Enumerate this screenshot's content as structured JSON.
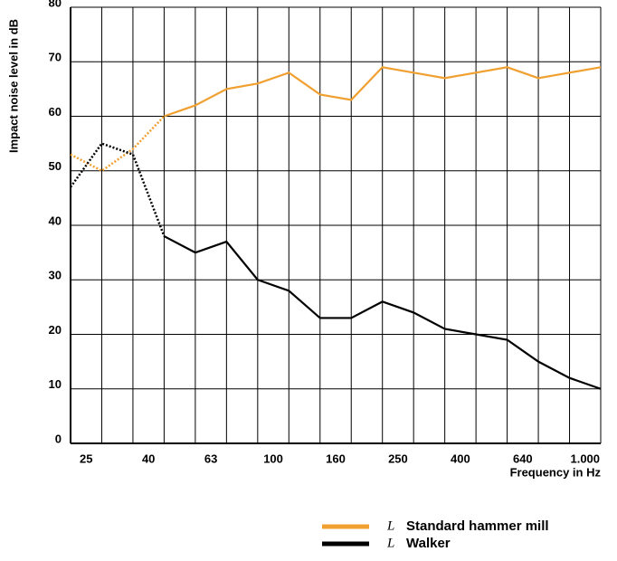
{
  "chart_data": {
    "type": "line",
    "y_label": "Impact noise level in dB",
    "x_label": "Frequency in Hz",
    "categories": [
      "25",
      null,
      "40",
      null,
      "63",
      null,
      "100",
      null,
      "160",
      null,
      "250",
      null,
      "400",
      null,
      "640",
      null,
      "1.000",
      null
    ],
    "ylim": [
      0,
      80
    ],
    "yticks": [
      0,
      10,
      20,
      30,
      40,
      50,
      60,
      70,
      80
    ],
    "grid": true,
    "legend_symbol": "L",
    "series": [
      {
        "name": "Standard hammer mill",
        "color": "#f0a030",
        "dotted_to_index": 3,
        "values": [
          53,
          50,
          54,
          60,
          62,
          65,
          66,
          68,
          64,
          63,
          69,
          68,
          67,
          68,
          69,
          67,
          68,
          69
        ]
      },
      {
        "name": "Walker",
        "color": "#000000",
        "dotted_to_index": 3,
        "values": [
          47,
          55,
          53,
          38,
          35,
          37,
          30,
          28,
          23,
          23,
          26,
          24,
          21,
          20,
          19,
          15,
          12,
          10
        ]
      }
    ]
  }
}
